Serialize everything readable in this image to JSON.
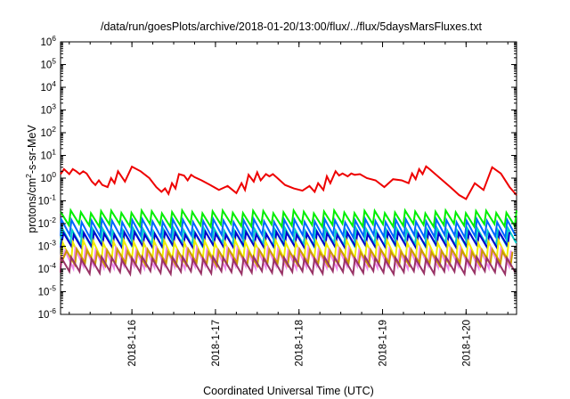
{
  "chart_data": {
    "type": "line",
    "title": "/data/run/goesPlots/archive/2018-01-20/13:00/flux/../flux/5daysMarsFluxes.txt",
    "xlabel": "Coordinated Universal Time (UTC)",
    "ylabel": {
      "base": "protons/cm",
      "sup": "2",
      "rest": "-s-sr-MeV"
    },
    "y_scale": "log",
    "ylim": [
      1e-06,
      1000000.0
    ],
    "y_ticks": [
      {
        "exp": -6,
        "base": "10",
        "sup": "-6"
      },
      {
        "exp": -5,
        "base": "10",
        "sup": "-5"
      },
      {
        "exp": -4,
        "base": "10",
        "sup": "-4"
      },
      {
        "exp": -3,
        "base": "10",
        "sup": "-3"
      },
      {
        "exp": -2,
        "base": "10",
        "sup": "-2"
      },
      {
        "exp": -1,
        "base": "10",
        "sup": "-1"
      },
      {
        "exp": 0,
        "base": "10",
        "sup": "0"
      },
      {
        "exp": 1,
        "base": "10",
        "sup": "1"
      },
      {
        "exp": 2,
        "base": "10",
        "sup": "2"
      },
      {
        "exp": 3,
        "base": "10",
        "sup": "3"
      },
      {
        "exp": 4,
        "base": "10",
        "sup": "4"
      },
      {
        "exp": 5,
        "base": "10",
        "sup": "5"
      },
      {
        "exp": 6,
        "base": "10",
        "sup": "6"
      }
    ],
    "xlim": [
      "2018-01-15T03:30",
      "2018-01-20T14:30"
    ],
    "x_ticks": [
      "2018-1-16",
      "2018-1-17",
      "2018-1-18",
      "2018-1-19",
      "2018-1-20"
    ],
    "grid": false,
    "legend": "none",
    "series": [
      {
        "color": "#ee0000",
        "x": [
          "2018-01-15T03:30",
          "2018-01-15T04:30",
          "2018-01-15T06:00",
          "2018-01-15T07:00",
          "2018-01-15T08:00",
          "2018-01-15T09:00",
          "2018-01-15T10:00",
          "2018-01-15T11:00",
          "2018-01-15T12:30",
          "2018-01-15T13:30",
          "2018-01-15T14:30",
          "2018-01-15T15:30",
          "2018-01-15T17:00",
          "2018-01-15T18:00",
          "2018-01-15T19:00",
          "2018-01-15T20:00",
          "2018-01-15T22:00",
          "2018-01-16T00:00",
          "2018-01-16T02:30",
          "2018-01-16T05:00",
          "2018-01-16T07:00",
          "2018-01-16T08:30",
          "2018-01-16T09:30",
          "2018-01-16T10:30",
          "2018-01-16T11:30",
          "2018-01-16T12:30",
          "2018-01-16T13:30",
          "2018-01-16T15:00",
          "2018-01-16T16:00",
          "2018-01-16T17:00",
          "2018-01-16T18:00",
          "2018-01-16T20:00",
          "2018-01-16T22:30",
          "2018-01-17T01:00",
          "2018-01-17T03:30",
          "2018-01-17T06:00",
          "2018-01-17T07:30",
          "2018-01-17T08:30",
          "2018-01-17T09:30",
          "2018-01-17T11:00",
          "2018-01-17T12:00",
          "2018-01-17T13:00",
          "2018-01-17T14:30",
          "2018-01-17T15:30",
          "2018-01-17T16:30",
          "2018-01-17T17:30",
          "2018-01-17T20:00",
          "2018-01-17T22:30",
          "2018-01-18T01:00",
          "2018-01-18T03:00",
          "2018-01-18T04:30",
          "2018-01-18T05:30",
          "2018-01-18T07:00",
          "2018-01-18T08:00",
          "2018-01-18T09:00",
          "2018-01-18T10:30",
          "2018-01-18T11:30",
          "2018-01-18T12:30",
          "2018-01-18T14:00",
          "2018-01-18T15:00",
          "2018-01-18T16:00",
          "2018-01-18T17:30",
          "2018-01-18T19:30",
          "2018-01-18T22:00",
          "2018-01-19T00:30",
          "2018-01-19T03:00",
          "2018-01-19T05:30",
          "2018-01-19T07:30",
          "2018-01-19T08:30",
          "2018-01-19T09:30",
          "2018-01-19T10:30",
          "2018-01-19T11:30",
          "2018-01-19T12:30",
          "2018-01-19T13:30",
          "2018-01-19T16:30",
          "2018-01-19T19:30",
          "2018-01-19T22:00",
          "2018-01-20T00:00",
          "2018-01-20T02:30",
          "2018-01-20T05:00",
          "2018-01-20T07:30",
          "2018-01-20T10:00",
          "2018-01-20T12:30",
          "2018-01-20T14:30"
        ],
        "values": [
          1.5,
          2.5,
          1.5,
          2.5,
          2.0,
          1.5,
          2.0,
          1.6,
          0.7,
          0.5,
          0.8,
          0.5,
          0.4,
          1.0,
          0.6,
          2.0,
          0.7,
          3.2,
          2.0,
          1.0,
          0.4,
          0.25,
          0.35,
          0.2,
          0.6,
          0.35,
          1.5,
          1.3,
          0.8,
          1.4,
          1.1,
          0.8,
          0.5,
          0.3,
          0.45,
          0.22,
          0.6,
          0.3,
          1.4,
          0.7,
          1.8,
          0.8,
          1.5,
          1.2,
          1.5,
          1.1,
          0.5,
          0.35,
          0.28,
          0.45,
          0.25,
          0.6,
          0.3,
          1.2,
          0.6,
          2.0,
          1.3,
          1.6,
          1.2,
          1.6,
          1.4,
          1.5,
          1.0,
          0.8,
          0.4,
          0.9,
          0.8,
          0.6,
          1.6,
          0.9,
          2.5,
          1.5,
          3.3,
          2.5,
          1.0,
          0.4,
          0.18,
          0.12,
          0.6,
          0.3,
          3.0,
          1.6,
          0.4,
          0.18
        ]
      }
    ],
    "band_series": [
      {
        "color": "#00ee00",
        "low": 0.0085,
        "high": 0.033,
        "pulses": 45,
        "phase": 0.0
      },
      {
        "color": "#0066ff",
        "low": 0.0028,
        "high": 0.0135,
        "pulses": 45,
        "phase": 0.08
      },
      {
        "color": "#00cccc",
        "low": 0.0012,
        "high": 0.0055,
        "pulses": 45,
        "phase": 0.15
      },
      {
        "color": "#0000cc",
        "low": 0.0009,
        "high": 0.0038,
        "pulses": 45,
        "phase": 0.3
      },
      {
        "color": "#eeee00",
        "low": 0.00025,
        "high": 0.0016,
        "pulses": 45,
        "phase": 0.22
      },
      {
        "color": "#ee88ee",
        "low": 0.00012,
        "high": 0.00075,
        "pulses": 45,
        "phase": 0.45
      },
      {
        "color": "#cc9900",
        "low": 0.00016,
        "high": 0.00065,
        "pulses": 45,
        "phase": 0.6
      },
      {
        "color": "#993366",
        "low": 7e-05,
        "high": 0.0003,
        "pulses": 45,
        "phase": 0.05
      }
    ]
  }
}
